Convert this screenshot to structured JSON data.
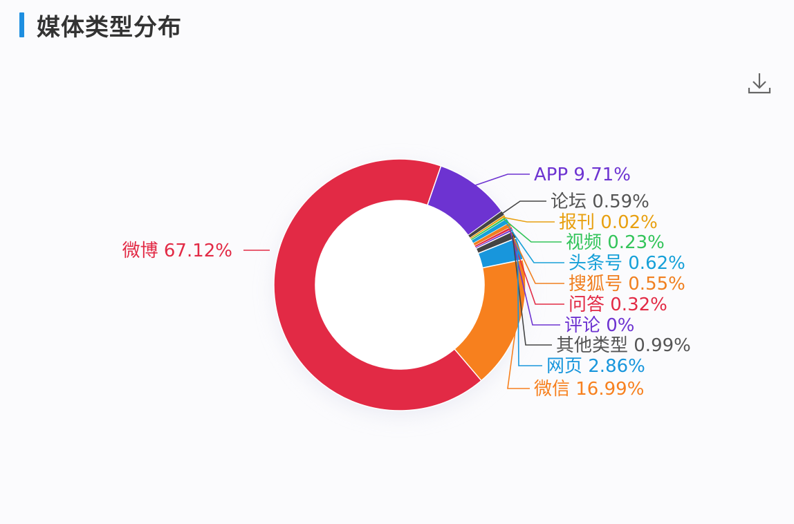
{
  "header": {
    "title": "媒体类型分布"
  },
  "toolbar": {
    "download_icon": "download-icon"
  },
  "chart_data": {
    "type": "pie",
    "variant": "donut",
    "title": "媒体类型分布",
    "slices": [
      {
        "name": "微博",
        "value": 67.12,
        "label": "微博 67.12%",
        "color": "#e22a45"
      },
      {
        "name": "APP",
        "value": 9.71,
        "label": "APP 9.71%",
        "color": "#6d33d1"
      },
      {
        "name": "论坛",
        "value": 0.59,
        "label": "论坛 0.59%",
        "color": "#444444"
      },
      {
        "name": "报刊",
        "value": 0.02,
        "label": "报刊 0.02%",
        "color": "#e8a010"
      },
      {
        "name": "视频",
        "value": 0.23,
        "label": "视频 0.23%",
        "color": "#33c45a"
      },
      {
        "name": "头条号",
        "value": 0.62,
        "label": "头条号 0.62%",
        "color": "#16a0d8"
      },
      {
        "name": "搜狐号",
        "value": 0.55,
        "label": "搜狐号 0.55%",
        "color": "#f07f1f"
      },
      {
        "name": "问答",
        "value": 0.32,
        "label": "问答 0.32%",
        "color": "#e22a45"
      },
      {
        "name": "评论",
        "value": 0,
        "label": "评论 0%",
        "color": "#6d33d1"
      },
      {
        "name": "其他类型",
        "value": 0.99,
        "label": "其他类型 0.99%",
        "color": "#444444"
      },
      {
        "name": "网页",
        "value": 2.86,
        "label": "网页 2.86%",
        "color": "#1896dc"
      },
      {
        "name": "微信",
        "value": 16.99,
        "label": "微信 16.99%",
        "color": "#f7801e"
      }
    ]
  }
}
